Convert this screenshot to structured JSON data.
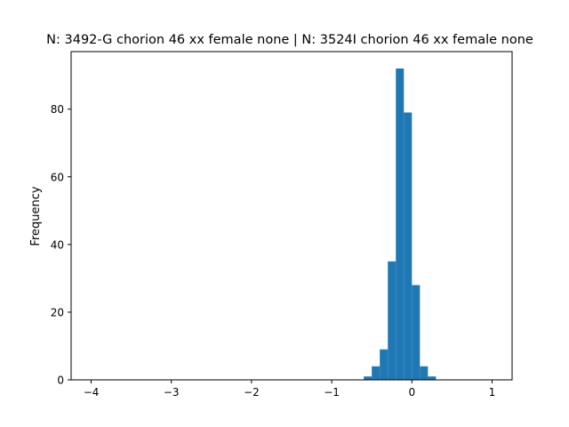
{
  "chart_data": {
    "type": "bar",
    "title": "N: 3492-G chorion 46 xx female none | N: 3524I chorion 46 xx female none",
    "xlabel": "",
    "ylabel": "Frequency",
    "xlim": [
      -4.25,
      1.25
    ],
    "ylim": [
      0,
      97
    ],
    "xticks": [
      -4,
      -3,
      -2,
      -1,
      0,
      1
    ],
    "xtick_labels": [
      "−4",
      "−3",
      "−2",
      "−1",
      "0",
      "1"
    ],
    "yticks": [
      0,
      20,
      40,
      60,
      80
    ],
    "ytick_labels": [
      "0",
      "20",
      "40",
      "60",
      "80"
    ],
    "grid": false,
    "bar_color": "#1f77b4",
    "bins": [
      {
        "x0": -0.6,
        "x1": -0.5,
        "count": 1
      },
      {
        "x0": -0.5,
        "x1": -0.4,
        "count": 4
      },
      {
        "x0": -0.4,
        "x1": -0.3,
        "count": 9
      },
      {
        "x0": -0.3,
        "x1": -0.2,
        "count": 35
      },
      {
        "x0": -0.2,
        "x1": -0.1,
        "count": 92
      },
      {
        "x0": -0.1,
        "x1": 0.0,
        "count": 79
      },
      {
        "x0": 0.0,
        "x1": 0.1,
        "count": 28
      },
      {
        "x0": 0.1,
        "x1": 0.2,
        "count": 4
      },
      {
        "x0": 0.2,
        "x1": 0.3,
        "count": 1
      }
    ]
  }
}
